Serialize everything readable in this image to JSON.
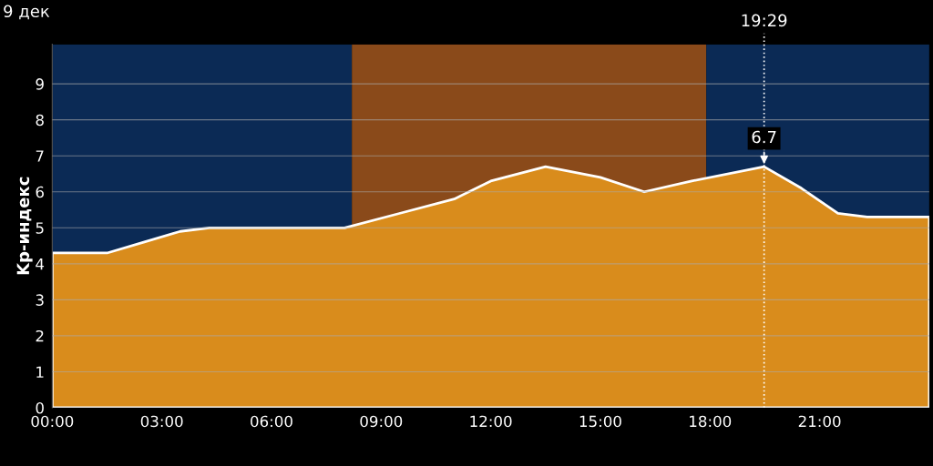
{
  "chart_data": {
    "type": "area",
    "title": "9 дек",
    "ylabel": "Kp-индекс",
    "x": [
      0,
      1.5,
      2.5,
      3.5,
      4.3,
      6,
      8,
      9.5,
      11,
      12,
      13.5,
      15,
      16.2,
      17.5,
      19.48,
      20.5,
      21.5,
      22.3,
      24
    ],
    "series": [
      {
        "color": "#d98c1c",
        "values": [
          4.3,
          4.3,
          4.6,
          4.9,
          5.0,
          5.0,
          5.0,
          5.4,
          5.8,
          6.3,
          6.7,
          6.4,
          6.0,
          6.3,
          6.7,
          6.1,
          5.4,
          5.3,
          5.3
        ]
      }
    ],
    "xlim": [
      0,
      24
    ],
    "ylim": [
      0,
      10.1
    ],
    "xticks": [
      {
        "value": 0,
        "label": "00:00"
      },
      {
        "value": 3,
        "label": "03:00"
      },
      {
        "value": 6,
        "label": "06:00"
      },
      {
        "value": 9,
        "label": "09:00"
      },
      {
        "value": 12,
        "label": "12:00"
      },
      {
        "value": 15,
        "label": "15:00"
      },
      {
        "value": 18,
        "label": "18:00"
      },
      {
        "value": 21,
        "label": "21:00"
      }
    ],
    "yticks": [
      0,
      1,
      2,
      3,
      4,
      5,
      6,
      7,
      8,
      9
    ],
    "grid": "y",
    "bands": [
      {
        "axis": "x",
        "from": 0,
        "to": 8.2,
        "color": "#0b2a55"
      },
      {
        "axis": "x",
        "from": 8.2,
        "to": 17.9,
        "color": "#8a4a1a"
      },
      {
        "axis": "x",
        "from": 17.9,
        "to": 24,
        "color": "#0b2a55"
      }
    ],
    "ref_lines": [
      {
        "axis": "x",
        "value": 19.48,
        "label": "19:29",
        "line_style": "dotted",
        "color": "#ffffff"
      }
    ],
    "annotations": [
      {
        "text": "6.7",
        "x": 19.48,
        "y": 6.7
      }
    ]
  }
}
